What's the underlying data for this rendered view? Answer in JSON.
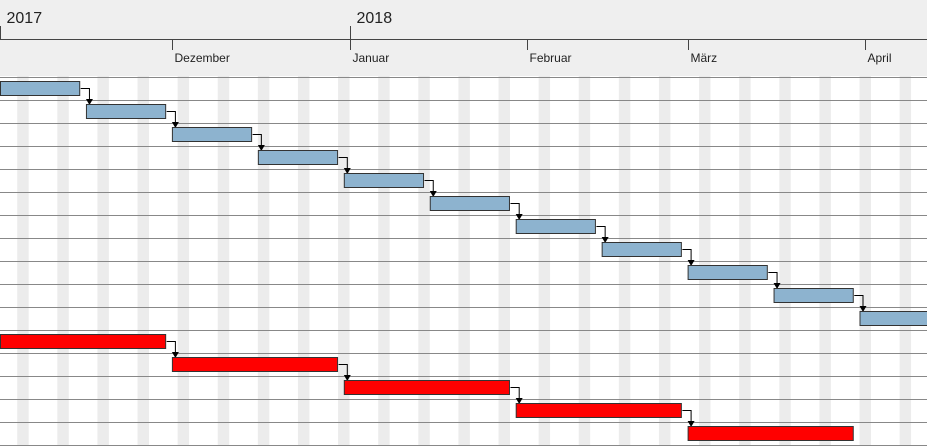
{
  "chart_data": {
    "type": "gantt",
    "title": "",
    "date_range": [
      "2017-11-01",
      "2018-04-30"
    ],
    "years": [
      {
        "label": "2017",
        "start": "2017-11-01"
      },
      {
        "label": "2018",
        "start": "2018-01-01"
      }
    ],
    "months": [
      {
        "label": "Dezember",
        "start": "2017-12-01"
      },
      {
        "label": "Januar",
        "start": "2018-01-01"
      },
      {
        "label": "Februar",
        "start": "2018-02-01"
      },
      {
        "label": "März",
        "start": "2018-03-01"
      },
      {
        "label": "April",
        "start": "2018-04-01"
      }
    ],
    "weekend_shading": true,
    "colors": {
      "task_blue": "#8db3cf",
      "task_red": "#ff0000",
      "header_bg": "#efefef",
      "weekend": "#ececec",
      "row_line": "#888888",
      "bar_border": "#333333",
      "arrow": "#000000"
    },
    "series": [
      {
        "color": "#8db3cf",
        "tasks": [
          {
            "start": "2017-11-01",
            "end": "2017-11-14"
          },
          {
            "start": "2017-11-16",
            "end": "2017-11-29"
          },
          {
            "start": "2017-12-01",
            "end": "2017-12-14"
          },
          {
            "start": "2017-12-16",
            "end": "2017-12-29"
          },
          {
            "start": "2017-12-31",
            "end": "2018-01-13"
          },
          {
            "start": "2018-01-15",
            "end": "2018-01-28"
          },
          {
            "start": "2018-01-30",
            "end": "2018-02-12"
          },
          {
            "start": "2018-02-14",
            "end": "2018-02-27"
          },
          {
            "start": "2018-03-01",
            "end": "2018-03-14"
          },
          {
            "start": "2018-03-16",
            "end": "2018-03-29"
          },
          {
            "start": "2018-03-31",
            "end": "2018-04-13"
          }
        ]
      },
      {
        "color": "#ff0000",
        "tasks": [
          {
            "start": "2017-11-01",
            "end": "2017-11-29"
          },
          {
            "start": "2017-12-01",
            "end": "2017-12-29"
          },
          {
            "start": "2017-12-31",
            "end": "2018-01-28"
          },
          {
            "start": "2018-01-30",
            "end": "2018-02-27"
          },
          {
            "start": "2018-03-01",
            "end": "2018-03-29"
          }
        ]
      }
    ]
  }
}
